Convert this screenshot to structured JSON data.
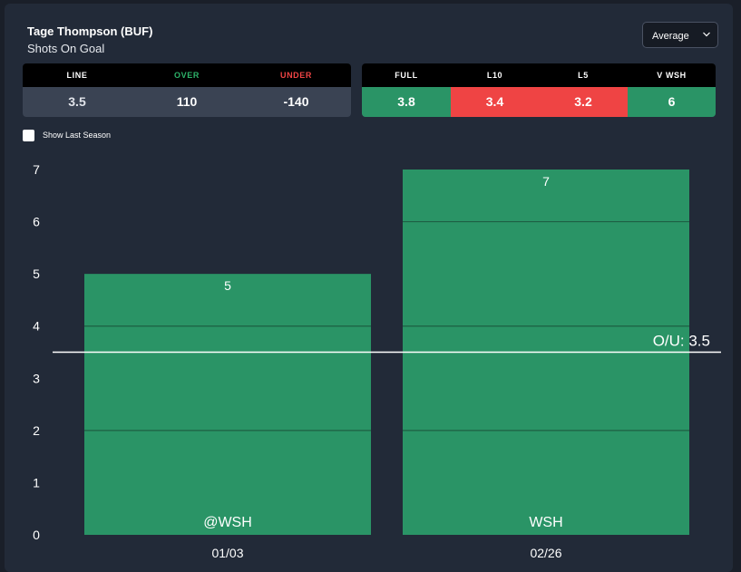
{
  "header": {
    "player": "Tage Thompson (BUF)",
    "market": "Shots On Goal"
  },
  "dropdown": {
    "selected": "Average"
  },
  "odds": {
    "headers": [
      "LINE",
      "OVER",
      "UNDER"
    ],
    "values": [
      "3.5",
      "110",
      "-140"
    ],
    "header_colors": [
      "#ffffff",
      "#2db36a",
      "#ef4444"
    ]
  },
  "averages": {
    "headers": [
      "FULL",
      "L10",
      "L5",
      "V WSH"
    ],
    "values": [
      "3.8",
      "3.4",
      "3.2",
      "6"
    ],
    "colors": [
      "#2a9466",
      "#ef4444",
      "#ef4444",
      "#2a9466"
    ]
  },
  "toggle": {
    "label": "Show Last Season",
    "checked": false
  },
  "chart_data": {
    "type": "bar",
    "categories": [
      "01/03",
      "02/26"
    ],
    "opponents": [
      "@WSH",
      "WSH"
    ],
    "values": [
      5,
      7
    ],
    "segments": [
      [
        2,
        2,
        1
      ],
      [
        2,
        2,
        2,
        1
      ]
    ],
    "ylim": [
      0,
      7
    ],
    "yticks": [
      0,
      1,
      2,
      3,
      4,
      5,
      6,
      7
    ],
    "line": {
      "value": 3.5,
      "label": "O/U: 3.5"
    },
    "bar_color": "#2a9466",
    "grid": false
  }
}
